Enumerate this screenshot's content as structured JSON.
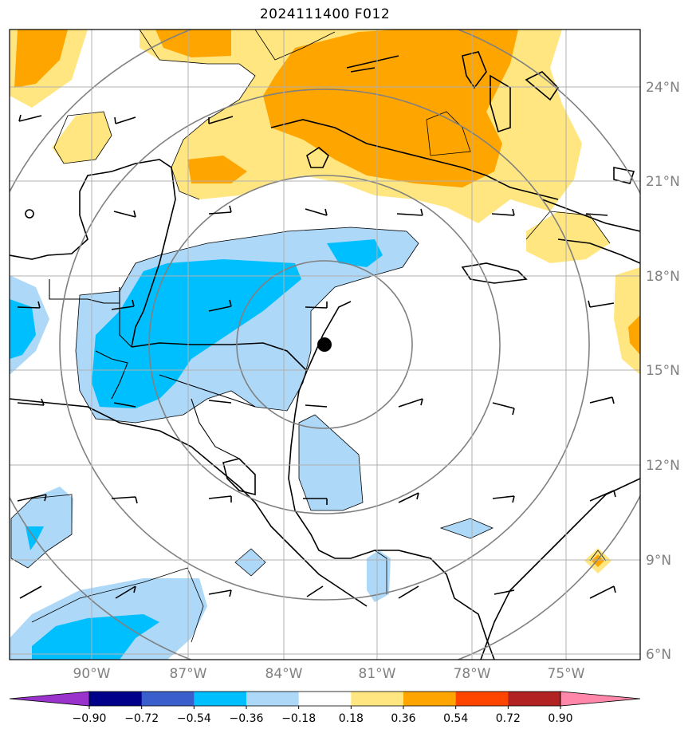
{
  "title": "2024111400 F012",
  "map": {
    "lat_labels": [
      "24°N",
      "21°N",
      "18°N",
      "15°N",
      "12°N",
      "9°N",
      "6°N"
    ],
    "lon_labels": [
      "90°W",
      "87°W",
      "84°W",
      "81°W",
      "78°W",
      "75°W"
    ],
    "storm_center": {
      "lat": 15.9,
      "lon": -82.3
    },
    "range_rings_deg": [
      3,
      6,
      9,
      12
    ]
  },
  "colorbar": {
    "labels": [
      "−0.90",
      "−0.72",
      "−0.54",
      "−0.36",
      "−0.18",
      "0.18",
      "0.36",
      "0.54",
      "0.72",
      "0.90"
    ],
    "colors": [
      "#9933cc",
      "#00008b",
      "#3a5fcd",
      "#00bfff",
      "#add8f8",
      "#ffffff",
      "#ffe680",
      "#ffa500",
      "#ff4500",
      "#b22222",
      "#ff88aa"
    ]
  },
  "shading_colors": {
    "light_blue": "#add8f8",
    "blue": "#00bfff",
    "light_yellow": "#ffe680",
    "orange": "#ffa500"
  }
}
